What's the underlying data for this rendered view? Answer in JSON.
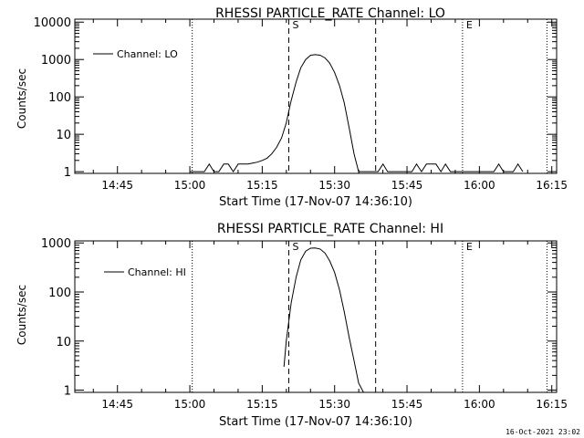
{
  "timestamp": "16-Oct-2021 23:02",
  "chart_data": [
    {
      "type": "line",
      "title": "RHESSI PARTICLE_RATE Channel: LO",
      "xlabel": "Start Time (17-Nov-07 14:36:10)",
      "ylabel": "Counts/sec",
      "legend": "Channel: LO",
      "legend_position": "top-left",
      "yscale": "log",
      "ylim": [
        0.9,
        12000
      ],
      "xlim": [
        14.6028,
        16.2667
      ],
      "x_tick_labels": [
        "14:45",
        "15:00",
        "15:15",
        "15:30",
        "15:45",
        "16:00",
        "16:15"
      ],
      "y_tick_labels": [
        "1",
        "10",
        "100",
        "1000",
        "10000"
      ],
      "markers": [
        {
          "label": "",
          "time": 15.0083,
          "style": "dotted"
        },
        {
          "label": "S",
          "time": 15.3417,
          "style": "dashed"
        },
        {
          "label": "",
          "time": 15.6417,
          "style": "dashed"
        },
        {
          "label": "E",
          "time": 15.9417,
          "style": "dotted"
        },
        {
          "label": "",
          "time": 16.2333,
          "style": "dotted"
        }
      ],
      "series": [
        {
          "name": "Channel: LO",
          "x": [
            15.0,
            15.017,
            15.033,
            15.05,
            15.067,
            15.083,
            15.1,
            15.117,
            15.133,
            15.15,
            15.167,
            15.183,
            15.2,
            15.217,
            15.233,
            15.25,
            15.267,
            15.283,
            15.3,
            15.317,
            15.333,
            15.35,
            15.367,
            15.383,
            15.4,
            15.417,
            15.433,
            15.45,
            15.467,
            15.483,
            15.5,
            15.517,
            15.533,
            15.55,
            15.567,
            15.583,
            15.6,
            15.617,
            15.633,
            15.65,
            15.667,
            15.683,
            15.7,
            15.717,
            15.733,
            15.75,
            15.767,
            15.783,
            15.8,
            15.817,
            15.833,
            15.85,
            15.867,
            15.883,
            15.9,
            15.917,
            15.933,
            15.95,
            15.967,
            15.983,
            16.0,
            16.017,
            16.033,
            16.05,
            16.067,
            16.083,
            16.1,
            16.117,
            16.133,
            16.15
          ],
          "values": [
            1,
            1,
            1,
            1,
            1.6,
            1,
            1,
            1.6,
            1.6,
            1,
            1.6,
            1.6,
            1.6,
            1.7,
            1.8,
            2.0,
            2.3,
            3.0,
            4.5,
            8,
            20,
            80,
            250,
            600,
            1000,
            1300,
            1350,
            1300,
            1100,
            800,
            450,
            200,
            70,
            15,
            3,
            1,
            1,
            1,
            1,
            1,
            1.6,
            1,
            1,
            1,
            1,
            1,
            1,
            1.6,
            1,
            1.6,
            1.6,
            1.6,
            1,
            1.6,
            1,
            1,
            1,
            1,
            1,
            1,
            1,
            1,
            1,
            1,
            1.6,
            1,
            1,
            1,
            1.6,
            1
          ]
        }
      ]
    },
    {
      "type": "line",
      "title": "RHESSI PARTICLE_RATE Channel: HI",
      "xlabel": "Start Time (17-Nov-07 14:36:10)",
      "ylabel": "Counts/sec",
      "legend": "Channel: HI",
      "legend_position": "top-left",
      "yscale": "log",
      "ylim": [
        0.9,
        1100
      ],
      "xlim": [
        14.6028,
        16.2667
      ],
      "x_tick_labels": [
        "14:45",
        "15:00",
        "15:15",
        "15:30",
        "15:45",
        "16:00",
        "16:15"
      ],
      "y_tick_labels": [
        "1",
        "10",
        "100",
        "1000"
      ],
      "markers": [
        {
          "label": "",
          "time": 15.0083,
          "style": "dotted"
        },
        {
          "label": "S",
          "time": 15.3417,
          "style": "dashed"
        },
        {
          "label": "",
          "time": 15.6417,
          "style": "dashed"
        },
        {
          "label": "E",
          "time": 15.9417,
          "style": "dotted"
        },
        {
          "label": "",
          "time": 16.2333,
          "style": "dotted"
        }
      ],
      "series": [
        {
          "name": "Channel: HI",
          "x": [
            15.325,
            15.333,
            15.35,
            15.367,
            15.383,
            15.4,
            15.417,
            15.433,
            15.45,
            15.467,
            15.483,
            15.5,
            15.517,
            15.533,
            15.55,
            15.567,
            15.583,
            15.6
          ],
          "values": [
            3,
            10,
            60,
            200,
            450,
            680,
            780,
            790,
            750,
            620,
            430,
            250,
            110,
            40,
            12,
            4,
            1.4,
            0.9
          ]
        }
      ]
    }
  ]
}
